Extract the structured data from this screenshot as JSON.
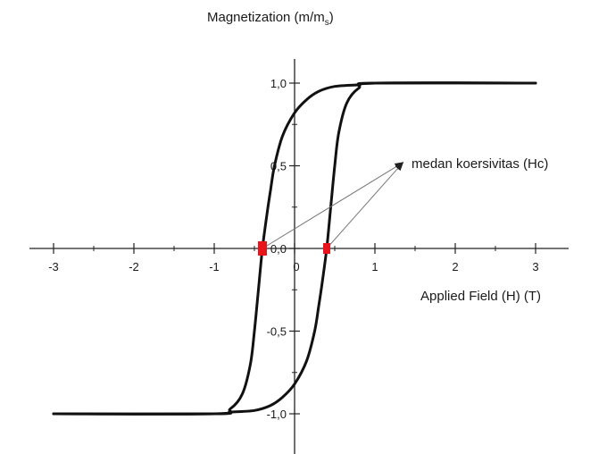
{
  "chart_data": {
    "type": "line",
    "title": "",
    "ylabel": "Magnetization (m/m",
    "ylabel_sub": "s",
    "ylabel_close": ")",
    "xlabel": "Applied Field (H) (T)",
    "xlim": [
      -3.3,
      3.3
    ],
    "ylim": [
      -1.15,
      1.2
    ],
    "x_ticks": [
      -3,
      -2,
      -1,
      0,
      1,
      2,
      3
    ],
    "x_tick_labels": [
      "-3",
      "-2",
      "-1",
      "0",
      "1",
      "2",
      "3"
    ],
    "y_ticks": [
      1.0,
      0.5,
      0.0,
      -0.5,
      -1.0
    ],
    "y_tick_labels": [
      "1,0",
      "0,5",
      "0,0",
      "-0,5",
      "-1,0"
    ],
    "grid": false,
    "line_color": "#111111",
    "marker_color": "#e8141c",
    "series": [
      {
        "role": "upper-branch",
        "x": [
          3.0,
          1.0,
          0.8,
          0.5,
          0.3,
          0.15,
          0.0,
          -0.15,
          -0.25,
          -0.3,
          -0.34,
          -0.4,
          -0.45,
          -0.5,
          -0.55,
          -0.65,
          -0.8,
          -1.0,
          -3.0
        ],
        "y": [
          1.0,
          1.0,
          0.99,
          0.98,
          0.95,
          0.9,
          0.82,
          0.68,
          0.5,
          0.35,
          0.22,
          0.0,
          -0.25,
          -0.5,
          -0.7,
          -0.88,
          -0.97,
          -1.0,
          -1.0
        ]
      },
      {
        "role": "lower-branch",
        "x": [
          -3.0,
          -1.0,
          -0.8,
          -0.5,
          -0.3,
          -0.15,
          0.0,
          0.15,
          0.25,
          0.3,
          0.34,
          0.4,
          0.45,
          0.5,
          0.55,
          0.65,
          0.8,
          1.0,
          3.0
        ],
        "y": [
          -1.0,
          -1.0,
          -0.99,
          -0.98,
          -0.95,
          -0.9,
          -0.82,
          -0.68,
          -0.5,
          -0.35,
          -0.22,
          0.0,
          0.25,
          0.5,
          0.7,
          0.88,
          0.97,
          1.0,
          1.0
        ]
      }
    ],
    "coercivity_points": [
      {
        "x": -0.4,
        "y": 0.0
      },
      {
        "x": 0.4,
        "y": 0.0
      }
    ],
    "annotation": {
      "text": "medan koersivitas (Hc)",
      "arrow_tip": {
        "x": 1.35,
        "y": 0.52
      }
    }
  }
}
